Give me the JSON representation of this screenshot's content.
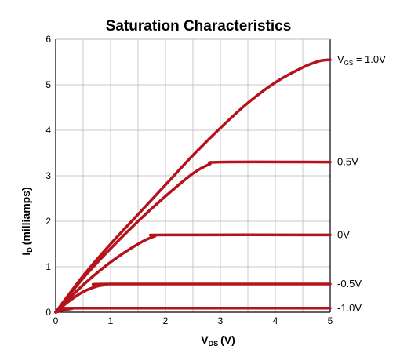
{
  "chart_data": {
    "type": "line",
    "title": "Saturation Characteristics",
    "xlabel": {
      "main": "V",
      "sub": "DS",
      "unit": "(V)"
    },
    "ylabel": {
      "main": "I",
      "sub": "D",
      "unit": "(milliamps)"
    },
    "xlim": [
      0,
      5
    ],
    "ylim": [
      0,
      6
    ],
    "xticks": [
      0,
      1,
      2,
      3,
      4,
      5
    ],
    "yticks": [
      0,
      1,
      2,
      3,
      4,
      5,
      6
    ],
    "xminor_step": 0.5,
    "grid": true,
    "line_color": "#b5121b",
    "series": [
      {
        "label_main": "V",
        "label_sub": "GS",
        "label_rest": " = 1.0V",
        "x": [
          0,
          0.5,
          1,
          1.5,
          2,
          2.5,
          3,
          3.5,
          4,
          4.5,
          4.8,
          5
        ],
        "values": [
          0,
          0.8,
          1.5,
          2.15,
          2.8,
          3.45,
          4.05,
          4.6,
          5.05,
          5.38,
          5.52,
          5.55
        ]
      },
      {
        "label_main": "0.5V",
        "x": [
          0,
          0.5,
          1,
          1.5,
          2,
          2.5,
          2.8,
          3,
          5
        ],
        "values": [
          0,
          0.75,
          1.4,
          2.0,
          2.55,
          3.05,
          3.25,
          3.3,
          3.3
        ]
      },
      {
        "label_main": "0V",
        "x": [
          0,
          0.5,
          1,
          1.5,
          1.8,
          2,
          5
        ],
        "values": [
          0,
          0.6,
          1.1,
          1.5,
          1.67,
          1.7,
          1.7
        ]
      },
      {
        "label_main": "-0.5V",
        "x": [
          0,
          0.25,
          0.5,
          0.75,
          0.9,
          1,
          5
        ],
        "values": [
          0,
          0.25,
          0.45,
          0.57,
          0.6,
          0.62,
          0.62
        ]
      },
      {
        "label_main": "-1.0V",
        "x": [
          0,
          0.15,
          0.3,
          0.45,
          5
        ],
        "values": [
          0,
          0.05,
          0.08,
          0.09,
          0.09
        ]
      }
    ]
  }
}
